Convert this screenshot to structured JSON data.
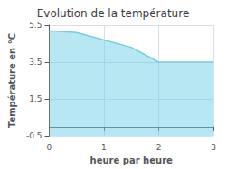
{
  "chart_data": {
    "type": "area",
    "title": "Evolution de la température",
    "x_label": "heure par heure",
    "y_label": "Température en °C",
    "x": [
      0,
      0.5,
      1.0,
      1.5,
      2.0,
      2.5,
      3.0
    ],
    "values": [
      5.2,
      5.1,
      4.7,
      4.3,
      3.5,
      3.5,
      3.5
    ],
    "color": "#6dcfe8",
    "xlim": [
      0,
      3
    ],
    "xticks": [
      0,
      1,
      2,
      3
    ],
    "ylim": [
      -0.5,
      5.5
    ],
    "yticks": [
      -0.5,
      1.5,
      3.5,
      5.5
    ],
    "grid": true
  }
}
